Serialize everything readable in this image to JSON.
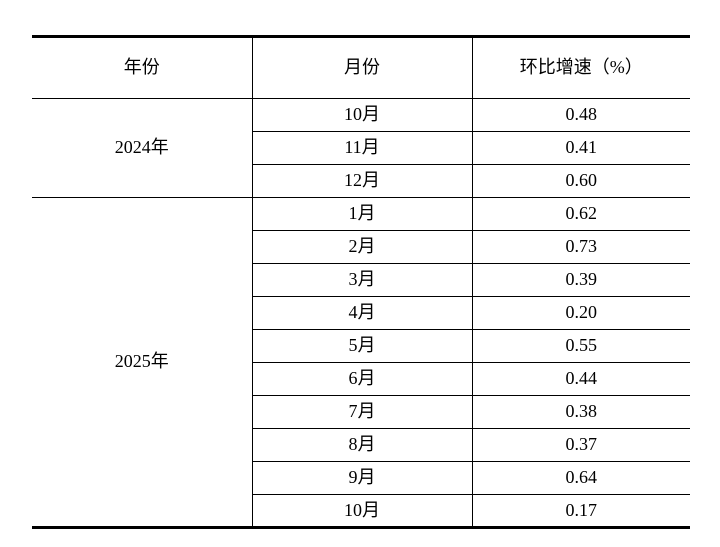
{
  "colors": {
    "background": "#ffffff",
    "border": "#000000",
    "text": "#000000"
  },
  "table": {
    "columns": [
      "年份",
      "月份",
      "环比增速（%）"
    ],
    "groups": [
      {
        "year": "2024年",
        "rows": [
          {
            "month": "10月",
            "value": "0.48"
          },
          {
            "month": "11月",
            "value": "0.41"
          },
          {
            "month": "12月",
            "value": "0.60"
          }
        ]
      },
      {
        "year": "2025年",
        "rows": [
          {
            "month": "1月",
            "value": "0.62"
          },
          {
            "month": "2月",
            "value": "0.73"
          },
          {
            "month": "3月",
            "value": "0.39"
          },
          {
            "month": "4月",
            "value": "0.20"
          },
          {
            "month": "5月",
            "value": "0.55"
          },
          {
            "month": "6月",
            "value": "0.44"
          },
          {
            "month": "7月",
            "value": "0.38"
          },
          {
            "month": "8月",
            "value": "0.37"
          },
          {
            "month": "9月",
            "value": "0.64"
          },
          {
            "month": "10月",
            "value": "0.17"
          }
        ]
      }
    ]
  },
  "chart_data": {
    "type": "table",
    "columns": [
      "年份",
      "月份",
      "环比增速（%）"
    ],
    "rows": [
      [
        "2024年",
        "10月",
        0.48
      ],
      [
        "2024年",
        "11月",
        0.41
      ],
      [
        "2024年",
        "12月",
        0.6
      ],
      [
        "2025年",
        "1月",
        0.62
      ],
      [
        "2025年",
        "2月",
        0.73
      ],
      [
        "2025年",
        "3月",
        0.39
      ],
      [
        "2025年",
        "4月",
        0.2
      ],
      [
        "2025年",
        "5月",
        0.55
      ],
      [
        "2025年",
        "6月",
        0.44
      ],
      [
        "2025年",
        "7月",
        0.38
      ],
      [
        "2025年",
        "8月",
        0.37
      ],
      [
        "2025年",
        "9月",
        0.64
      ],
      [
        "2025年",
        "10月",
        0.17
      ]
    ]
  }
}
